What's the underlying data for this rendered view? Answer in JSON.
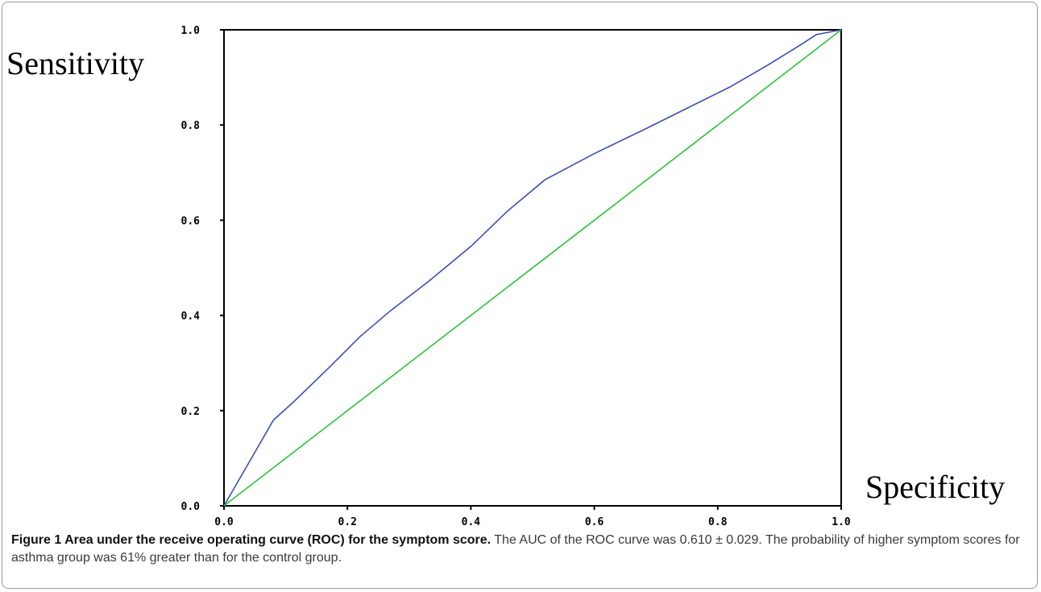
{
  "chart_data": {
    "type": "line",
    "xlabel": "Specificity",
    "ylabel": "Sensitivity",
    "xlim": [
      0.0,
      1.0
    ],
    "ylim": [
      0.0,
      1.0
    ],
    "xticks": [
      0.0,
      0.2,
      0.4,
      0.6,
      0.8,
      1.0
    ],
    "yticks": [
      0.0,
      0.2,
      0.4,
      0.6,
      0.8,
      1.0
    ],
    "xtick_labels": [
      "0.0",
      "0.2",
      "0.4",
      "0.6",
      "0.8",
      "1.0"
    ],
    "ytick_labels": [
      "0.0",
      "0.2",
      "0.4",
      "0.6",
      "0.8",
      "1.0"
    ],
    "grid": false,
    "series": [
      {
        "color": "#3a4fb0",
        "x": [
          0.0,
          0.08,
          0.11,
          0.17,
          0.22,
          0.27,
          0.33,
          0.4,
          0.46,
          0.52,
          0.6,
          0.68,
          0.75,
          0.82,
          0.88,
          0.93,
          0.96,
          1.0
        ],
        "y": [
          0.0,
          0.18,
          0.215,
          0.29,
          0.355,
          0.41,
          0.47,
          0.545,
          0.62,
          0.685,
          0.74,
          0.79,
          0.835,
          0.88,
          0.925,
          0.965,
          0.99,
          1.0
        ]
      },
      {
        "color": "#2fc23a",
        "x": [
          0.0,
          1.0
        ],
        "y": [
          0.0,
          1.0
        ]
      }
    ]
  },
  "caption": {
    "label": "Figure 1 Area under the receive operating curve (ROC) for the symptom score.",
    "text": " The AUC of the ROC curve was 0.610 ± 0.029. The probability of higher symptom scores for asthma group was 61% greater than for the control group."
  }
}
